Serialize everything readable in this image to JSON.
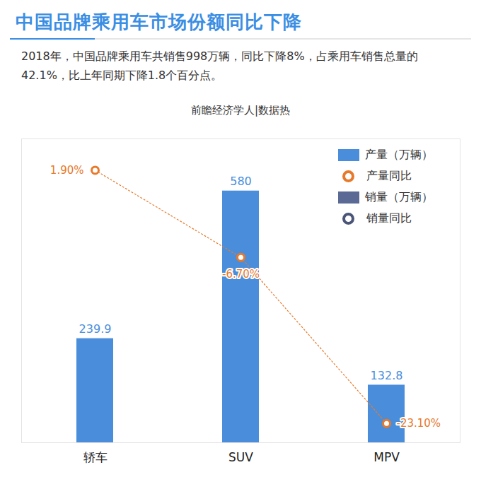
{
  "chart_data": {
    "type": "bar",
    "title": "中国品牌乘用车市场份额同比下降",
    "subtitle": "2018年，中国品牌乘用车共销售998万辆，同比下降8%，占乘用车销售总量的42.1%，比上年同期下降1.8个百分点。",
    "source": "前瞻经济学人|数据热",
    "categories": [
      "轿车",
      "SUV",
      "MPV"
    ],
    "series": [
      {
        "name": "产量（万辆）",
        "type": "bar",
        "color": "#4a8edb",
        "values": [
          239.9,
          580,
          132.8
        ]
      },
      {
        "name": "产量同比",
        "type": "line",
        "axis": "y2",
        "color": "#e8792b",
        "marker": "circle",
        "line_style": "dotted",
        "values": [
          1.9,
          -6.7,
          -23.1
        ],
        "value_labels": [
          "1.90%",
          "-6.70%",
          "-23.10%"
        ]
      },
      {
        "name": "销量（万辆）",
        "type": "bar",
        "color": "#5a6a94",
        "values": [
          null,
          null,
          null
        ]
      },
      {
        "name": "销量同比",
        "type": "line",
        "axis": "y2",
        "color": "#4a5578",
        "marker": "circle",
        "values": [
          null,
          null,
          null
        ]
      }
    ],
    "ylim": [
      0,
      700
    ],
    "y2lim": [
      -25,
      5
    ],
    "tick_labels": "x",
    "grid": false,
    "data_labels": true,
    "legend": "upper right"
  }
}
